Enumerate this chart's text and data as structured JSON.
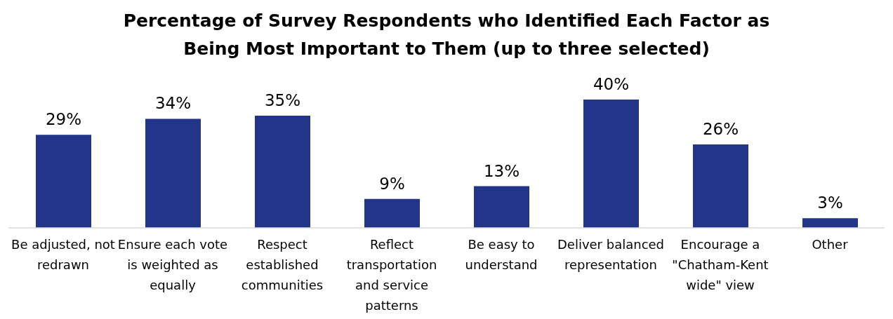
{
  "chart_data": {
    "type": "bar",
    "title": "Percentage of Survey Respondents who Identified Each Factor as Being Most Important to Them (up to three selected)",
    "categories": [
      "Be adjusted, not redrawn",
      "Ensure each vote is weighted as equally",
      "Respect established communities",
      "Reflect transportation and service patterns",
      "Be easy to understand",
      "Deliver balanced representation",
      "Encourage a \"Chatham-Kent wide\" view",
      "Other"
    ],
    "values": [
      29,
      34,
      35,
      9,
      13,
      40,
      26,
      3
    ],
    "value_labels": [
      "29%",
      "34%",
      "35%",
      "9%",
      "13%",
      "40%",
      "26%",
      "3%"
    ],
    "color": "#233589",
    "grid": false,
    "legend": false
  }
}
